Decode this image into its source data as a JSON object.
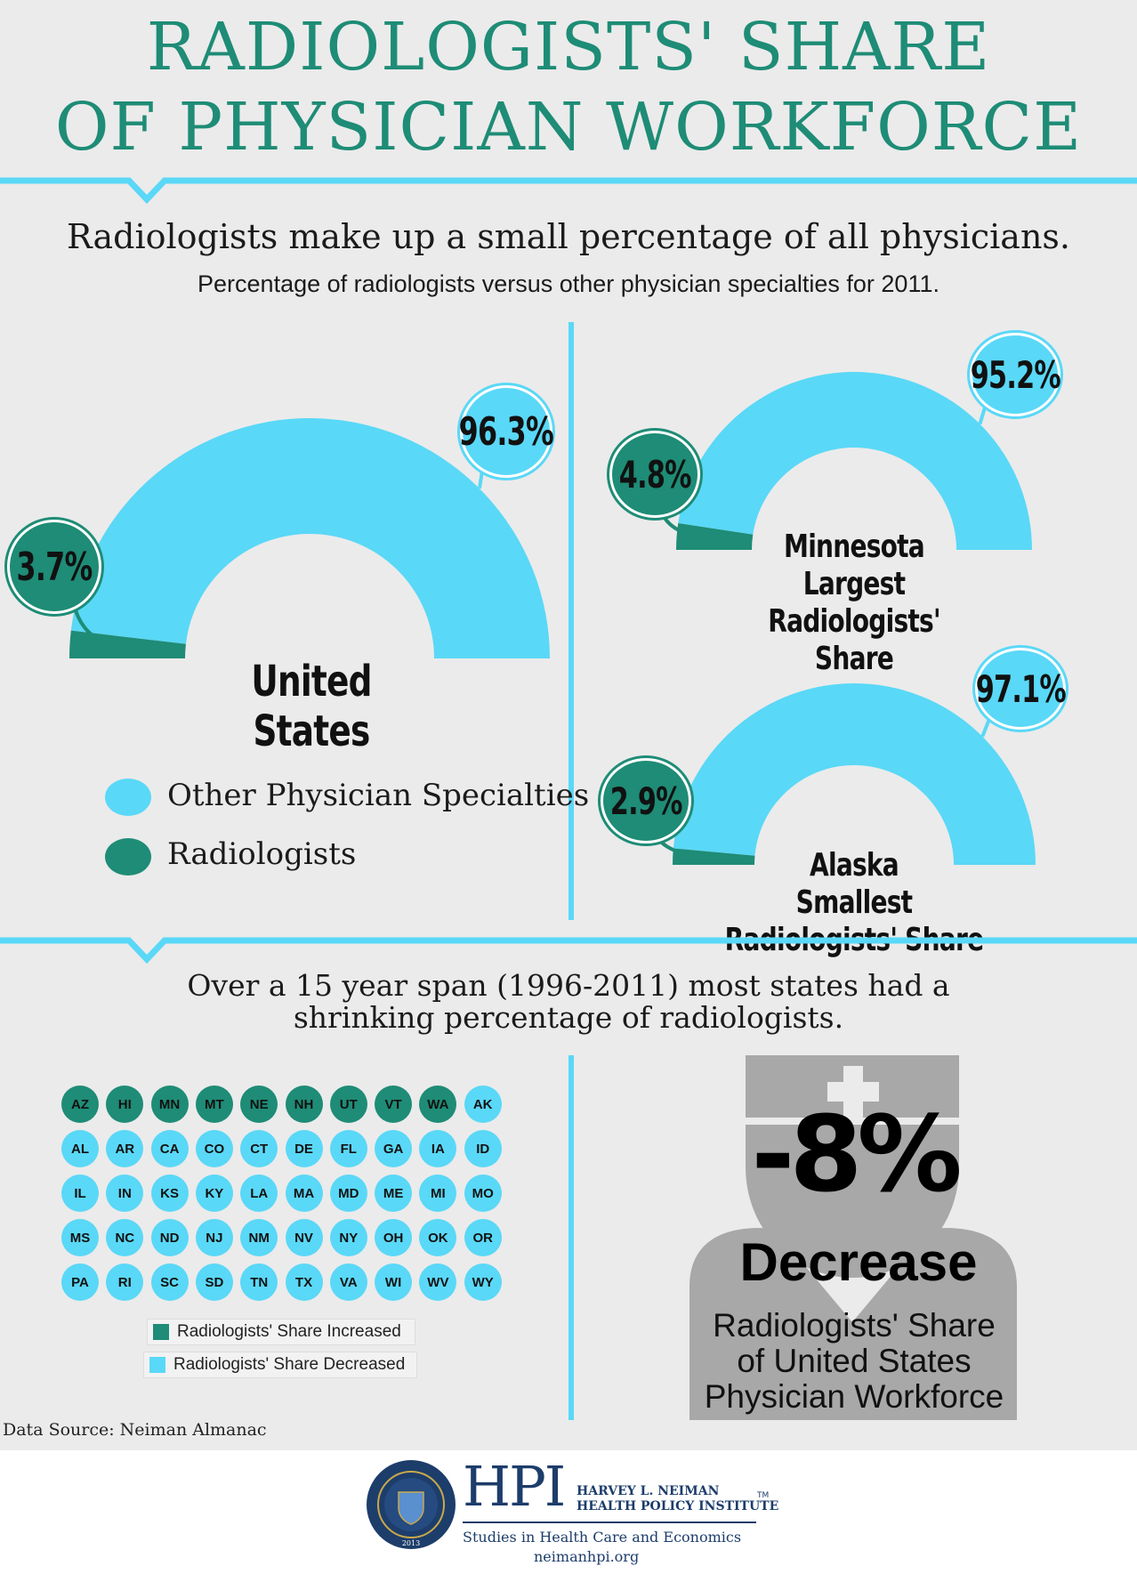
{
  "title": {
    "line1": "RADIOLOGISTS' SHARE",
    "line2": "OF PHYSICIAN WORKFORCE"
  },
  "section1": {
    "headline": "Radiologists make up a small percentage of all physicians.",
    "subhead": "Percentage of radiologists versus other physician specialties for 2011."
  },
  "colors": {
    "other": "#5ad8f7",
    "radiologists": "#1e8c76",
    "accent_line": "#5ad8f7",
    "title": "#1e8c76",
    "gray": "#a8a8a8"
  },
  "chart_data": [
    {
      "type": "pie",
      "name": "United States",
      "labels": [
        "Other Physician Specialties",
        "Radiologists"
      ],
      "values": [
        96.3,
        3.7
      ],
      "label_other": "96.3%",
      "label_rad": "3.7%"
    },
    {
      "type": "pie",
      "name": "Minnesota",
      "subtitle": "Largest Radiologists' Share",
      "labels": [
        "Other Physician Specialties",
        "Radiologists"
      ],
      "values": [
        95.2,
        4.8
      ],
      "label_other": "95.2%",
      "label_rad": "4.8%"
    },
    {
      "type": "pie",
      "name": "Alaska",
      "subtitle": "Smallest Radiologists' Share",
      "labels": [
        "Other Physician Specialties",
        "Radiologists"
      ],
      "values": [
        97.1,
        2.9
      ],
      "label_other": "97.1%",
      "label_rad": "2.9%"
    }
  ],
  "legend": {
    "other": "Other Physician Specialties",
    "radiologists": "Radiologists"
  },
  "section2": {
    "headline_line1": "Over a 15 year span (1996-2011) most states had a",
    "headline_line2": "shrinking percentage of radiologists."
  },
  "states": {
    "increased": [
      "AZ",
      "HI",
      "MN",
      "MT",
      "NE",
      "NH",
      "UT",
      "VT",
      "WA"
    ],
    "grid": [
      [
        "AZ",
        "HI",
        "MN",
        "MT",
        "NE",
        "NH",
        "UT",
        "VT",
        "WA",
        "AK"
      ],
      [
        "AL",
        "AR",
        "CA",
        "CO",
        "CT",
        "DE",
        "FL",
        "GA",
        "IA",
        "ID"
      ],
      [
        "IL",
        "IN",
        "KS",
        "KY",
        "LA",
        "MA",
        "MD",
        "ME",
        "MI",
        "MO"
      ],
      [
        "MS",
        "NC",
        "ND",
        "NJ",
        "NM",
        "NV",
        "NY",
        "OH",
        "OK",
        "OR"
      ],
      [
        "PA",
        "RI",
        "SC",
        "SD",
        "TN",
        "TX",
        "VA",
        "WI",
        "WV",
        "WY"
      ]
    ],
    "legend_increased": "Radiologists' Share Increased",
    "legend_decreased": "Radiologists' Share Decreased"
  },
  "stat": {
    "value": "-8%",
    "label": "Decrease",
    "desc_line1": "Radiologists' Share",
    "desc_line2": "of United States",
    "desc_line3": "Physician Workforce"
  },
  "source": "Data Source: Neiman Almanac",
  "footer": {
    "logo_text": "HPI",
    "org_line1": "HARVEY L. NEIMAN",
    "org_line2": "HEALTH POLICY INSTITUTE",
    "tm": "TM",
    "tagline": "Studies in Health Care and Economics",
    "url": "neimanhpi.org",
    "seal_year": "2013"
  }
}
